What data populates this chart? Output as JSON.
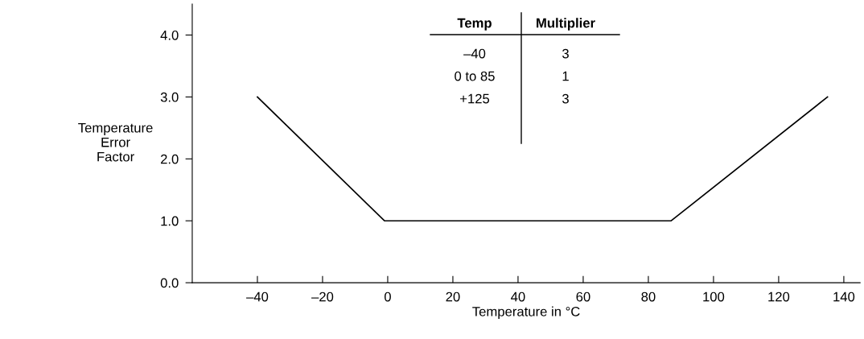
{
  "chart_data": {
    "type": "line",
    "xlabel": "Temperature in °C",
    "ylabel": "Temperature\nError\nFactor",
    "x": [
      -40,
      -1,
      87,
      135
    ],
    "series": [
      {
        "color": "#000000",
        "values": [
          3,
          1,
          1,
          3
        ]
      }
    ],
    "xlim": [
      -60,
      145
    ],
    "ylim": [
      0,
      4.5
    ],
    "xticks": [
      {
        "value": -40,
        "label": "–40"
      },
      {
        "value": -20,
        "label": "–20"
      },
      0,
      20,
      40,
      60,
      80,
      100,
      120,
      140
    ],
    "yticks": [
      {
        "value": 0,
        "label": "0.0"
      },
      {
        "value": 1,
        "label": "1.0"
      },
      {
        "value": 2,
        "label": "2.0"
      },
      {
        "value": 3,
        "label": "3.0"
      },
      {
        "value": 4,
        "label": "4.0"
      }
    ],
    "grid": false,
    "legend": false,
    "marker": "none",
    "line_style": "solid",
    "annotations": [
      "Temp",
      "Multiplier",
      "–40",
      "3",
      "0 to 85",
      "1",
      "+125",
      "3"
    ]
  }
}
